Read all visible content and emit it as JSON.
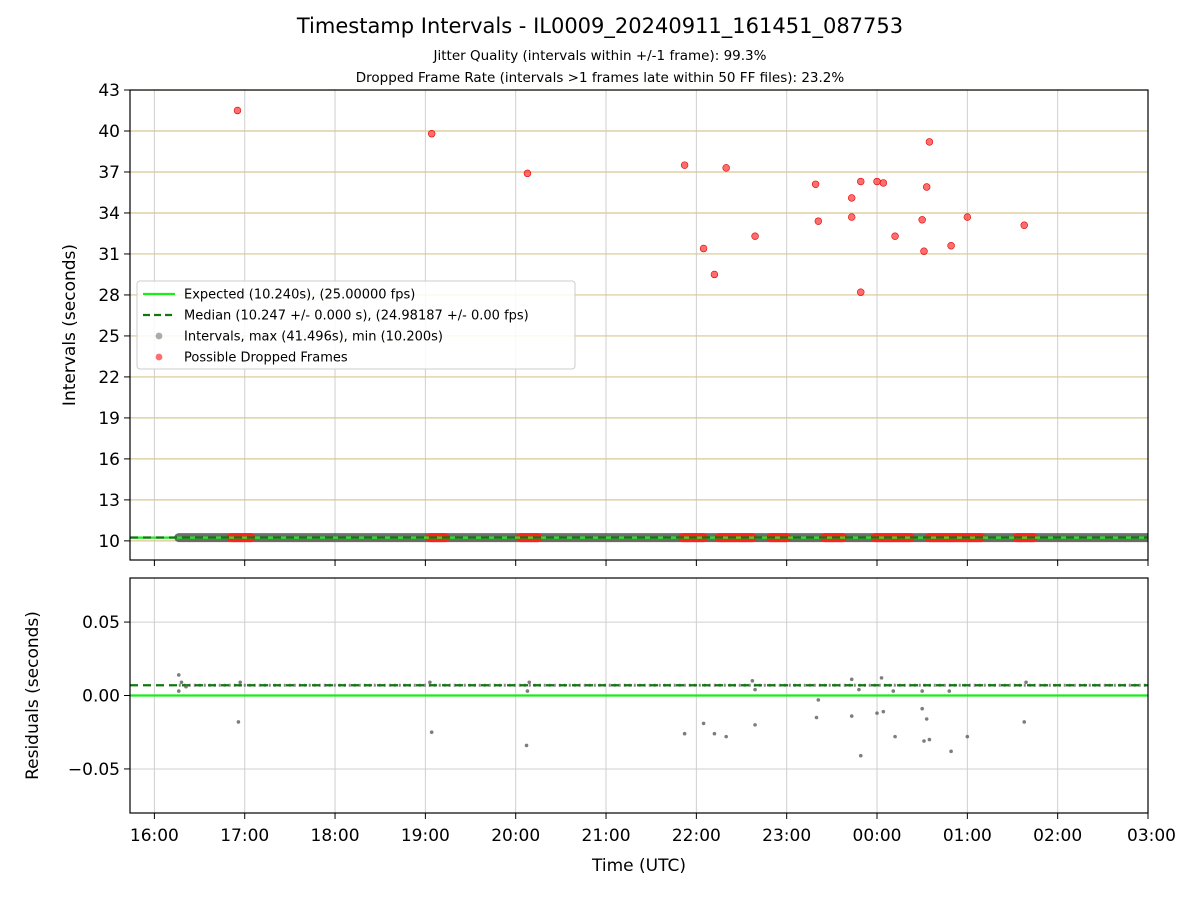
{
  "title": "Timestamp Intervals - IL0009_20240911_161451_087753",
  "subtitle_lines": [
    "Jitter Quality (intervals within +/-1 frame): 99.3%",
    "Dropped Frame Rate (intervals >1 frames late within 50 FF files): 23.2%"
  ],
  "colors": {
    "expected": "#19ee19",
    "median": "#107810",
    "intervals": "#555555",
    "dropped": "#ff2020",
    "grid_top": "#d8c890",
    "grid": "#cfcfcf"
  },
  "chart_data": [
    {
      "type": "scatter",
      "panel": "intervals",
      "xlabel": "",
      "ylabel": "Intervals (seconds)",
      "x_unit": "hours since 16:00 UTC",
      "xlim": [
        -0.27,
        11.0
      ],
      "ylim": [
        8.6,
        43.0
      ],
      "yticks": [
        10,
        13,
        16,
        19,
        22,
        25,
        28,
        31,
        34,
        37,
        40,
        43
      ],
      "grid": "on",
      "legend_position": "upper-left",
      "legend": [
        "Expected (10.240s), (25.00000 fps)",
        "Median (10.247 +/- 0.000 s), (24.98187 +/- 0.00 fps)",
        "Intervals, max (41.496s), min (10.200s)",
        "Possible Dropped Frames"
      ],
      "expected_value": 10.24,
      "median_value": 10.247,
      "intervals_band": {
        "x_start": 0.27,
        "x_end": 11.0,
        "y": 10.24
      },
      "dropped_band_segments": [
        [
          0.85,
          1.07
        ],
        [
          3.05,
          3.22
        ],
        [
          4.05,
          4.25
        ],
        [
          5.85,
          6.08
        ],
        [
          6.25,
          6.62
        ],
        [
          6.82,
          7.0
        ],
        [
          7.42,
          7.62
        ],
        [
          7.98,
          8.37
        ],
        [
          8.58,
          8.87
        ],
        [
          8.88,
          9.15
        ],
        [
          9.55,
          9.73
        ]
      ],
      "dropped_points": [
        {
          "x": 0.92,
          "y": 41.5
        },
        {
          "x": 3.07,
          "y": 39.8
        },
        {
          "x": 4.13,
          "y": 36.9
        },
        {
          "x": 5.87,
          "y": 37.5
        },
        {
          "x": 6.33,
          "y": 37.3
        },
        {
          "x": 6.08,
          "y": 31.4
        },
        {
          "x": 6.2,
          "y": 29.5
        },
        {
          "x": 6.65,
          "y": 32.3
        },
        {
          "x": 7.32,
          "y": 36.1
        },
        {
          "x": 7.35,
          "y": 33.4
        },
        {
          "x": 7.72,
          "y": 33.7
        },
        {
          "x": 7.72,
          "y": 35.1
        },
        {
          "x": 7.82,
          "y": 36.3
        },
        {
          "x": 7.82,
          "y": 28.2
        },
        {
          "x": 8.0,
          "y": 36.3
        },
        {
          "x": 8.07,
          "y": 36.2
        },
        {
          "x": 8.2,
          "y": 32.3
        },
        {
          "x": 8.5,
          "y": 33.5
        },
        {
          "x": 8.52,
          "y": 31.2
        },
        {
          "x": 8.55,
          "y": 35.9
        },
        {
          "x": 8.58,
          "y": 39.2
        },
        {
          "x": 8.82,
          "y": 31.6
        },
        {
          "x": 9.0,
          "y": 33.7
        },
        {
          "x": 9.63,
          "y": 33.1
        }
      ]
    },
    {
      "type": "scatter",
      "panel": "residuals",
      "xlabel": "Time (UTC)",
      "ylabel": "Residuals (seconds)",
      "xlim": [
        -0.27,
        11.0
      ],
      "ylim": [
        -0.08,
        0.08
      ],
      "yticks": [
        -0.05,
        0.0,
        0.05
      ],
      "ytick_labels": [
        "−0.05",
        "0.00",
        "0.05"
      ],
      "xticks": [
        0,
        1,
        2,
        3,
        4,
        5,
        6,
        7,
        8,
        9,
        10,
        11
      ],
      "xtick_labels": [
        "16:00",
        "17:00",
        "18:00",
        "19:00",
        "20:00",
        "21:00",
        "22:00",
        "23:00",
        "00:00",
        "01:00",
        "02:00",
        "03:00"
      ],
      "grid": "on",
      "expected_value": 0.0,
      "median_value": 0.007,
      "band_value": 0.007,
      "points": [
        {
          "x": 0.27,
          "y": 0.014
        },
        {
          "x": 0.27,
          "y": 0.003
        },
        {
          "x": 0.3,
          "y": 0.009
        },
        {
          "x": 0.35,
          "y": 0.006
        },
        {
          "x": 0.93,
          "y": -0.018
        },
        {
          "x": 0.95,
          "y": 0.009
        },
        {
          "x": 3.07,
          "y": -0.025
        },
        {
          "x": 3.05,
          "y": 0.009
        },
        {
          "x": 4.12,
          "y": -0.034
        },
        {
          "x": 4.13,
          "y": 0.003
        },
        {
          "x": 4.15,
          "y": 0.009
        },
        {
          "x": 5.87,
          "y": -0.026
        },
        {
          "x": 6.08,
          "y": -0.019
        },
        {
          "x": 6.2,
          "y": -0.026
        },
        {
          "x": 6.33,
          "y": -0.028
        },
        {
          "x": 6.65,
          "y": -0.02
        },
        {
          "x": 6.62,
          "y": 0.01
        },
        {
          "x": 6.65,
          "y": 0.004
        },
        {
          "x": 7.33,
          "y": -0.015
        },
        {
          "x": 7.35,
          "y": -0.003
        },
        {
          "x": 7.72,
          "y": -0.014
        },
        {
          "x": 7.82,
          "y": -0.041
        },
        {
          "x": 7.72,
          "y": 0.011
        },
        {
          "x": 7.8,
          "y": 0.004
        },
        {
          "x": 8.0,
          "y": -0.012
        },
        {
          "x": 8.07,
          "y": -0.011
        },
        {
          "x": 8.05,
          "y": 0.012
        },
        {
          "x": 8.18,
          "y": 0.003
        },
        {
          "x": 8.2,
          "y": -0.028
        },
        {
          "x": 8.5,
          "y": -0.009
        },
        {
          "x": 8.52,
          "y": -0.031
        },
        {
          "x": 8.55,
          "y": -0.016
        },
        {
          "x": 8.58,
          "y": -0.03
        },
        {
          "x": 8.5,
          "y": 0.003
        },
        {
          "x": 8.8,
          "y": 0.003
        },
        {
          "x": 8.82,
          "y": -0.038
        },
        {
          "x": 9.0,
          "y": -0.028
        },
        {
          "x": 9.63,
          "y": -0.018
        },
        {
          "x": 9.65,
          "y": 0.009
        }
      ]
    }
  ]
}
